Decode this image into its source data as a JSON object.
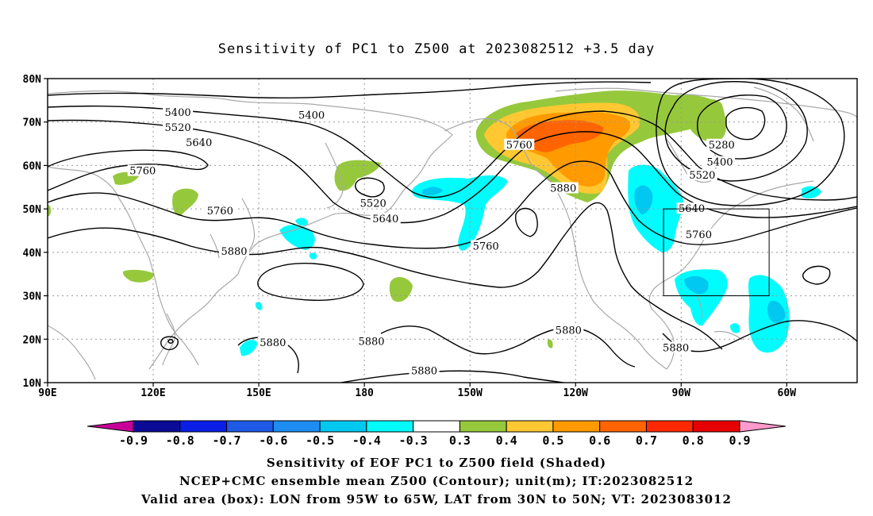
{
  "title": "Sensitivity of PC1 to Z500 at 2023082512 +3.5 day",
  "map": {
    "lon_ticks": [
      "90E",
      "120E",
      "150E",
      "180",
      "150W",
      "120W",
      "90W",
      "60W"
    ],
    "lat_ticks": [
      "80N",
      "70N",
      "60N",
      "50N",
      "40N",
      "30N",
      "20N",
      "10N"
    ],
    "contour_labels": [
      {
        "text": "5400",
        "lon": 127,
        "lat": 72.0
      },
      {
        "text": "5400",
        "lon": 165,
        "lat": 71.3
      },
      {
        "text": "5520",
        "lon": 127,
        "lat": 68.5
      },
      {
        "text": "5640",
        "lon": 133,
        "lat": 65.0
      },
      {
        "text": "5760",
        "lon": 117,
        "lat": 58.5
      },
      {
        "text": "5760",
        "lon": 139,
        "lat": 49.3
      },
      {
        "text": "5520",
        "lon": 182.5,
        "lat": 51.0
      },
      {
        "text": "5640",
        "lon": 186,
        "lat": 47.5
      },
      {
        "text": "5760",
        "lon": 224,
        "lat": 64.5
      },
      {
        "text": "5880",
        "lon": 236.5,
        "lat": 54.5
      },
      {
        "text": "5760",
        "lon": 214.5,
        "lat": 41.2
      },
      {
        "text": "5880",
        "lon": 143,
        "lat": 40.0
      },
      {
        "text": "5280",
        "lon": 281.5,
        "lat": 64.5
      },
      {
        "text": "5400",
        "lon": 281,
        "lat": 60.5
      },
      {
        "text": "5520",
        "lon": 276,
        "lat": 57.5
      },
      {
        "text": "5640",
        "lon": 273,
        "lat": 49.8
      },
      {
        "text": "5760",
        "lon": 275,
        "lat": 43.8
      },
      {
        "text": "5880",
        "lon": 154,
        "lat": 19.0
      },
      {
        "text": "5880",
        "lon": 182,
        "lat": 19.2
      },
      {
        "text": "5880",
        "lon": 238,
        "lat": 21.8
      },
      {
        "text": "5880",
        "lon": 268.5,
        "lat": 17.8
      },
      {
        "text": "5880",
        "lon": 197,
        "lat": 12.5
      }
    ],
    "valid_box": {
      "lon_min": 265,
      "lon_max": 295,
      "lat_min": 30,
      "lat_max": 50
    },
    "extent": {
      "lon_min": 90,
      "lon_max": 320,
      "lat_min": 10,
      "lat_max": 80
    }
  },
  "colorbar": {
    "labels": [
      "-0.9",
      "-0.8",
      "-0.7",
      "-0.6",
      "-0.5",
      "-0.4",
      "-0.3",
      "0.3",
      "0.4",
      "0.5",
      "0.6",
      "0.7",
      "0.8",
      "0.9"
    ],
    "colors": [
      "#0a0a96",
      "#0a1ee6",
      "#1e5ae6",
      "#1e8cf0",
      "#00c8f0",
      "#00fcfc",
      "#ffffff",
      "#96c83c",
      "#ffc832",
      "#ff9a00",
      "#ff6400",
      "#ff2800",
      "#e60000"
    ],
    "left_arrow_color": "#c8009a",
    "right_arrow_color": "#ff9acc"
  },
  "captions": [
    "Sensitivity of EOF PC1 to Z500 field (Shaded)",
    "NCEP+CMC ensemble mean Z500 (Contour); unit(m); IT:2023082512",
    "Valid area (box): LON from 95W to 65W, LAT from 30N to 50N; VT: 2023083012"
  ]
}
